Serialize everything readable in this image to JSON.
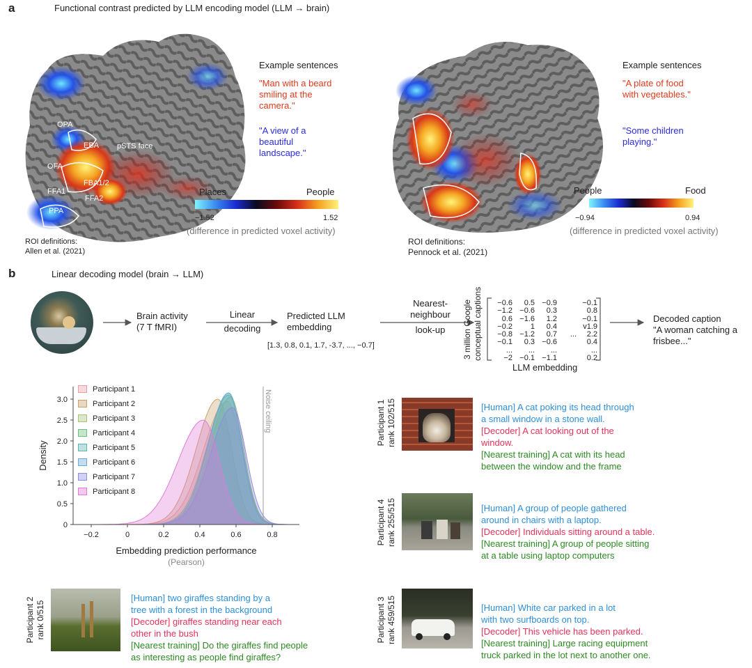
{
  "panel_a": {
    "letter": "a",
    "title": "Functional contrast predicted by LLM encoding model (LLM → brain)",
    "left": {
      "example_heading": "Example sentences",
      "red_sentence": [
        "\"Man with a beard",
        "smiling at the",
        "camera.\""
      ],
      "blue_sentence": [
        "\"A view of a",
        "beautiful",
        "landscape.\""
      ],
      "roi_labels": [
        "OPA",
        "EBA",
        "pSTS face",
        "OFA",
        "FBA1/2",
        "FFA1",
        "FFA2",
        "PPA"
      ],
      "colorbar_left_label": "Places",
      "colorbar_right_label": "People",
      "colorbar_min": "−1.52",
      "colorbar_max": "1.52",
      "colorbar_caption": "(difference in predicted voxel activity)",
      "roi_definitions": [
        "ROI definitions:",
        "Allen et al. (2021)"
      ]
    },
    "right": {
      "example_heading": "Example sentences",
      "red_sentence": [
        "\"A plate of food",
        "with vegetables.\""
      ],
      "blue_sentence": [
        "\"Some children",
        "playing.\""
      ],
      "colorbar_left_label": "People",
      "colorbar_right_label": "Food",
      "colorbar_min": "−0.94",
      "colorbar_max": "0.94",
      "colorbar_caption": "(difference in predicted voxel activity)",
      "roi_definitions": [
        "ROI definitions:",
        "Pennock et al. (2021)"
      ]
    }
  },
  "panel_b": {
    "letter": "b",
    "title": "Linear decoding model (brain → LLM)",
    "pipeline": {
      "brain_activity": [
        "Brain activity",
        "(7 T fMRI)"
      ],
      "linear_decoding": [
        "Linear",
        "decoding"
      ],
      "predicted_embedding": [
        "Predicted LLM",
        "embedding"
      ],
      "embedding_vector": "[1.3, 0.8, 0.1, 1.7, -3.7, ..., −0.7]",
      "nearest_neighbour": [
        "Nearest-",
        "neighbour",
        "look-up"
      ],
      "matrix_side_label": [
        "3 million Google",
        "conceptual captions"
      ],
      "matrix_rows": [
        [
          "−0.6",
          "0.5",
          "−0.9",
          "",
          "−0.1"
        ],
        [
          "−1.2",
          "−0.6",
          "0.3",
          "",
          "0.8"
        ],
        [
          "0.6",
          "−1.6",
          "1.2",
          "",
          "−0.1"
        ],
        [
          "−0.2",
          "1",
          "0.4",
          "",
          "v1.9"
        ],
        [
          "−0.8",
          "−1.2",
          "0.7",
          "...",
          "2.2"
        ],
        [
          "−0.1",
          "0.3",
          "−0.6",
          "",
          "0.4"
        ],
        [
          "...",
          "...",
          "...",
          "",
          "..."
        ],
        [
          "−2",
          "−0.1",
          "−1.1",
          "",
          "0.2"
        ]
      ],
      "matrix_bottom_label": "LLM embedding",
      "decoded_caption_heading": "Decoded caption",
      "decoded_caption": [
        "\"A woman catching a",
        "frisbee...\""
      ]
    },
    "examples": [
      {
        "participant": "Participant 1",
        "rank": "rank 102/515",
        "human": [
          "[Human] A cat poking its head through",
          "a small window in a stone wall."
        ],
        "decoder": [
          "[Decoder] A cat looking out of the",
          "window."
        ],
        "nearest": [
          "[Nearest training] A cat with its head",
          "between the window and the frame"
        ]
      },
      {
        "participant": "Participant 4",
        "rank": "rank 255/515",
        "human": [
          "[Human] A group of people gathered",
          "around in chairs with a laptop."
        ],
        "decoder": [
          "[Decoder] Individuals sitting around a table."
        ],
        "nearest": [
          "[Nearest training] A group of people sitting",
          "at a table using laptop computers"
        ]
      },
      {
        "participant": "Participant 3",
        "rank": "rank 459/515",
        "human": [
          "[Human] White car parked in a lot",
          "with two surfboards on top."
        ],
        "decoder": [
          "[Decoder] This vehicle has been parked."
        ],
        "nearest": [
          "[Nearest training] Large racing equipment",
          "truck parked in the lot next to another one."
        ]
      },
      {
        "participant": "Participant 2",
        "rank": "rank 0/515",
        "human": [
          "[Human] two giraffes standing by a",
          "tree with a forest in the background"
        ],
        "decoder": [
          "[Decoder] giraffes standing near each",
          "other in the bush"
        ],
        "nearest": [
          "[Nearest training] Do the giraffes find people",
          "as interesting as people find giraffes?"
        ]
      }
    ]
  },
  "chart_data": {
    "type": "area",
    "xlabel": "Embedding prediction performance",
    "xlabel_sub": "(Pearson)",
    "ylabel": "Density",
    "xlim": [
      -0.3,
      0.95
    ],
    "ylim": [
      0,
      3.3
    ],
    "xticks": [
      "−0.2",
      "0",
      "0.2",
      "0.4",
      "0.6",
      "0.8"
    ],
    "xtick_values": [
      -0.2,
      0,
      0.2,
      0.4,
      0.6,
      0.8
    ],
    "yticks": [
      "0",
      "0.5",
      "1.0",
      "1.5",
      "2.0",
      "2.5",
      "3.0"
    ],
    "ytick_values": [
      0,
      0.5,
      1.0,
      1.5,
      2.0,
      2.5,
      3.0
    ],
    "noise_ceiling": 0.75,
    "noise_ceiling_label": "Noise ceiling",
    "legend_position": "top-left",
    "series": [
      {
        "name": "Participant 1",
        "color": "#e8a0a8",
        "mean": 0.55,
        "sd": 0.13,
        "peak": 2.95
      },
      {
        "name": "Participant 2",
        "color": "#c9a06a",
        "mean": 0.5,
        "sd": 0.12,
        "peak": 3.0
      },
      {
        "name": "Participant 3",
        "color": "#a8c07a",
        "mean": 0.57,
        "sd": 0.115,
        "peak": 3.05
      },
      {
        "name": "Participant 4",
        "color": "#6cc07e",
        "mean": 0.56,
        "sd": 0.12,
        "peak": 3.1
      },
      {
        "name": "Participant 5",
        "color": "#58b4b0",
        "mean": 0.56,
        "sd": 0.115,
        "peak": 3.15
      },
      {
        "name": "Participant 6",
        "color": "#6aa8d8",
        "mean": 0.56,
        "sd": 0.115,
        "peak": 3.15
      },
      {
        "name": "Participant 7",
        "color": "#8c8ce0",
        "mean": 0.58,
        "sd": 0.12,
        "peak": 2.8
      },
      {
        "name": "Participant 8",
        "color": "#e07ad8",
        "mean": 0.42,
        "sd": 0.14,
        "peak": 2.5
      }
    ]
  },
  "colors": {
    "red_text": "#e03a1c",
    "blue_text": "#2a2ae0",
    "human": "#2f8fd8",
    "decoder": "#e5325a",
    "nearest": "#2d8a22"
  }
}
